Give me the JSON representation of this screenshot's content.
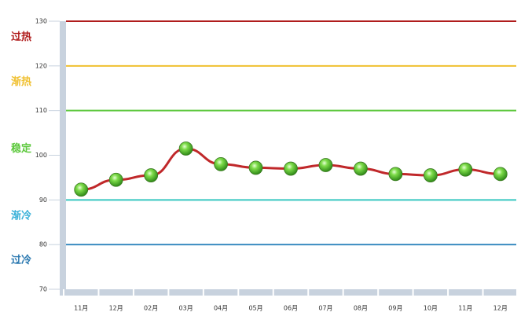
{
  "chart_data": {
    "type": "line",
    "categories": [
      "11月",
      "12月",
      "02月",
      "03月",
      "04月",
      "05月",
      "06月",
      "07月",
      "08月",
      "09月",
      "10月",
      "11月",
      "12月"
    ],
    "series": [
      {
        "color": "#c0282a",
        "values": [
          92.3,
          94.5,
          95.5,
          101.5,
          98,
          97.2,
          97,
          97.8,
          97,
          95.8,
          95.5,
          96.8,
          95.8
        ]
      }
    ],
    "ylim": [
      70,
      130
    ],
    "yticks": [
      70,
      80,
      90,
      100,
      110,
      120,
      130
    ],
    "reference_lines": [
      {
        "value": 130,
        "color": "#b01c1c"
      },
      {
        "value": 120,
        "color": "#f0c030"
      },
      {
        "value": 110,
        "color": "#5cc83c"
      },
      {
        "value": 90,
        "color": "#38c8c0"
      },
      {
        "value": 80,
        "color": "#3a8cc0"
      }
    ],
    "zones": [
      {
        "label": "过热",
        "range": [
          120,
          130
        ],
        "color": "#b01c1c"
      },
      {
        "label": "渐热",
        "range": [
          110,
          120
        ],
        "color": "#f0c030"
      },
      {
        "label": "稳定",
        "range": [
          90,
          110
        ],
        "color": "#5cc83c"
      },
      {
        "label": "渐冷",
        "range": [
          80,
          90
        ],
        "color": "#38b0d8"
      },
      {
        "label": "过冷",
        "range": [
          70,
          80
        ],
        "color": "#2a78b0"
      }
    ]
  }
}
